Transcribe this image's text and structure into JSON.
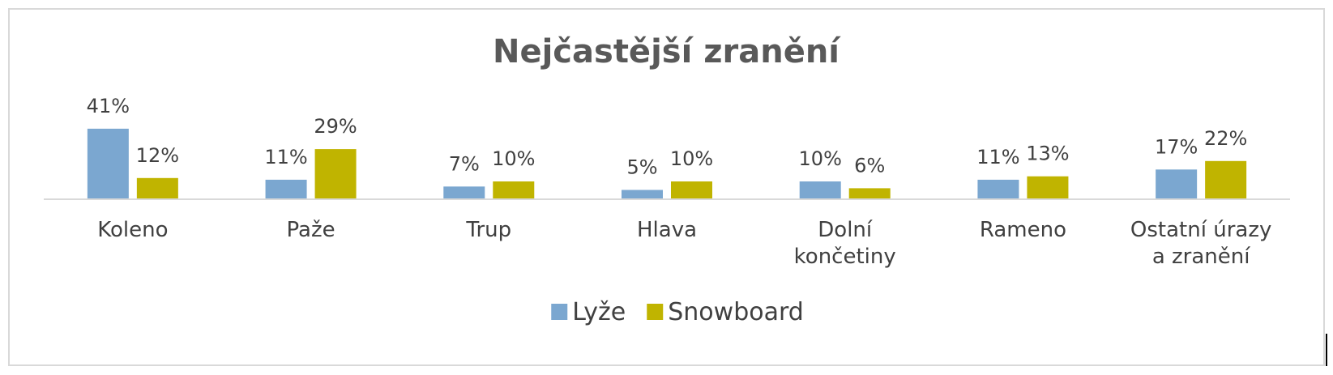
{
  "chart_data": {
    "type": "bar",
    "title": "Nejčastější zranění",
    "xlabel": "",
    "ylabel": "",
    "ylim": [
      0,
      0.5
    ],
    "grid": false,
    "legend_position": "bottom",
    "value_format": "percent",
    "categories": [
      [
        "Koleno"
      ],
      [
        "Paže"
      ],
      [
        "Trup"
      ],
      [
        "Hlava"
      ],
      [
        "Dolní",
        "končetiny"
      ],
      [
        "Rameno"
      ],
      [
        "Ostatní úrazy",
        "a zranění"
      ]
    ],
    "series": [
      {
        "name": "Lyže",
        "color": "#7ba7d0",
        "values": [
          0.41,
          0.11,
          0.07,
          0.05,
          0.1,
          0.11,
          0.17
        ]
      },
      {
        "name": "Snowboard",
        "color": "#c0b400",
        "values": [
          0.12,
          0.29,
          0.1,
          0.1,
          0.06,
          0.13,
          0.22
        ]
      }
    ]
  }
}
